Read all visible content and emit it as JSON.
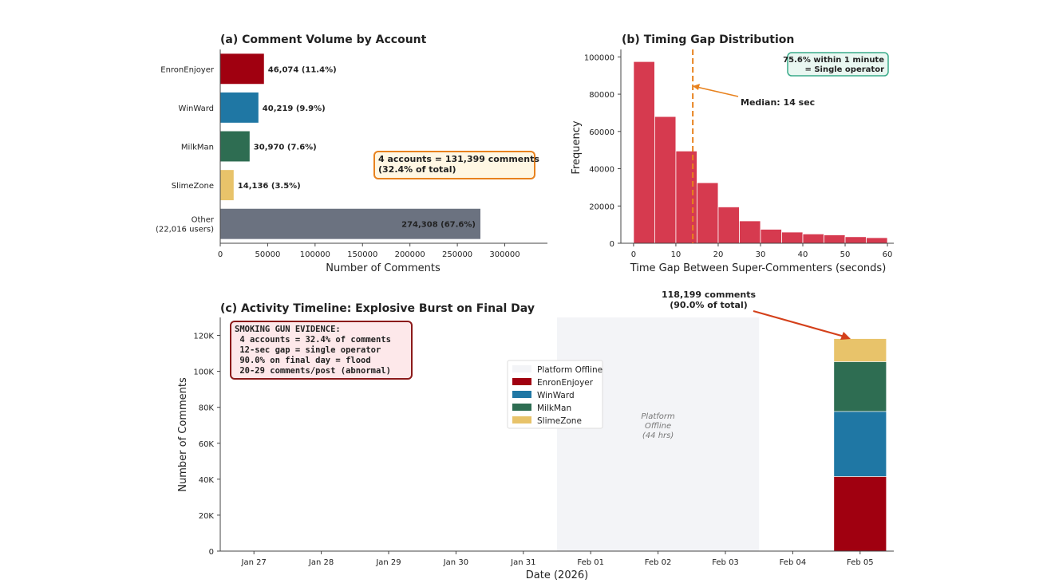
{
  "chart_data": [
    {
      "type": "bar",
      "orientation": "horizontal",
      "title": "(a)  Comment Volume by Account",
      "xlabel": "Number of Comments",
      "xlim": [
        0,
        345000
      ],
      "xticks": [
        0,
        50000,
        100000,
        150000,
        200000,
        250000,
        300000
      ],
      "categories": [
        "EnronEnjoyer",
        "WinWard",
        "MilkMan",
        "SlimeZone",
        "Other\n(22,016 users)"
      ],
      "values": [
        46074,
        40219,
        30970,
        14136,
        274308
      ],
      "bar_labels": [
        "46,074 (11.4%)",
        "40,219 (9.9%)",
        "30,970 (7.6%)",
        "14,136 (3.5%)",
        "274,308 (67.6%)"
      ],
      "colors": [
        "#a00010",
        "#1f77a4",
        "#2e6d52",
        "#e8c36a",
        "#6b7280"
      ],
      "annotation": "4 accounts = 131,399 comments\n(32.4% of total)",
      "annotation_color": "#e8821e"
    },
    {
      "type": "histogram",
      "title": "(b)  Timing Gap Distribution",
      "xlabel": "Time Gap Between Super-Commenters (seconds)",
      "ylabel": "Frequency",
      "xlim": [
        -3,
        61.5
      ],
      "ylim": [
        0,
        104000
      ],
      "xticks": [
        0,
        10,
        20,
        30,
        40,
        50,
        60
      ],
      "yticks": [
        0,
        20000,
        40000,
        60000,
        80000,
        100000
      ],
      "bin_width": 5,
      "bin_starts": [
        0,
        5,
        10,
        15,
        20,
        25,
        30,
        35,
        40,
        45,
        50,
        55
      ],
      "values": [
        97500,
        68000,
        49500,
        32500,
        19500,
        12000,
        7500,
        6000,
        5000,
        4500,
        3500,
        3000
      ],
      "color": "#d63a4f",
      "median": 14,
      "median_label": "Median: 14 sec",
      "median_color": "#e8821e",
      "annotation": "75.6% within 1 minute\n= Single operator",
      "annotation_color": "#3aab8a"
    },
    {
      "type": "stacked_bar",
      "title": "(c)  Activity Timeline: Explosive Burst on Final Day",
      "xlabel": "Date (2026)",
      "ylabel": "Number of Comments",
      "ylim": [
        0,
        130000
      ],
      "yticks": [
        0,
        20000,
        40000,
        60000,
        80000,
        100000,
        120000
      ],
      "ytick_labels": [
        "0",
        "20K",
        "40K",
        "60K",
        "80K",
        "100K",
        "120K"
      ],
      "categories": [
        "Jan 27",
        "Jan 28",
        "Jan 29",
        "Jan 30",
        "Jan 31",
        "Feb 01",
        "Feb 02",
        "Feb 03",
        "Feb 04",
        "Feb 05"
      ],
      "series": [
        {
          "name": "EnronEnjoyer",
          "color": "#a00010",
          "values": [
            0,
            0,
            0,
            0,
            0,
            0,
            0,
            0,
            0,
            41500
          ]
        },
        {
          "name": "WinWard",
          "color": "#1f77a4",
          "values": [
            0,
            0,
            0,
            0,
            0,
            0,
            0,
            0,
            0,
            36200
          ]
        },
        {
          "name": "MilkMan",
          "color": "#2e6d52",
          "values": [
            0,
            0,
            0,
            0,
            0,
            0,
            0,
            0,
            0,
            27700
          ]
        },
        {
          "name": "SlimeZone",
          "color": "#e8c36a",
          "values": [
            0,
            0,
            0,
            0,
            0,
            0,
            0,
            0,
            0,
            12799
          ]
        }
      ],
      "offline_span": [
        4.5,
        7.5
      ],
      "offline_legend": "Platform Offline",
      "offline_label": "Platform\nOffline\n(44 hrs)",
      "peak_annotation": "118,199 comments\n(90.0% of total)",
      "peak_annotation_color": "#d4401a",
      "evidence_box": "SMOKING GUN EVIDENCE:\n  4 accounts = 32.4% of comments\n  12-sec gap = single operator\n  90.0% on final day = flood\n  20-29 comments/post (abnormal)",
      "evidence_color": "#8b1a1a"
    }
  ]
}
